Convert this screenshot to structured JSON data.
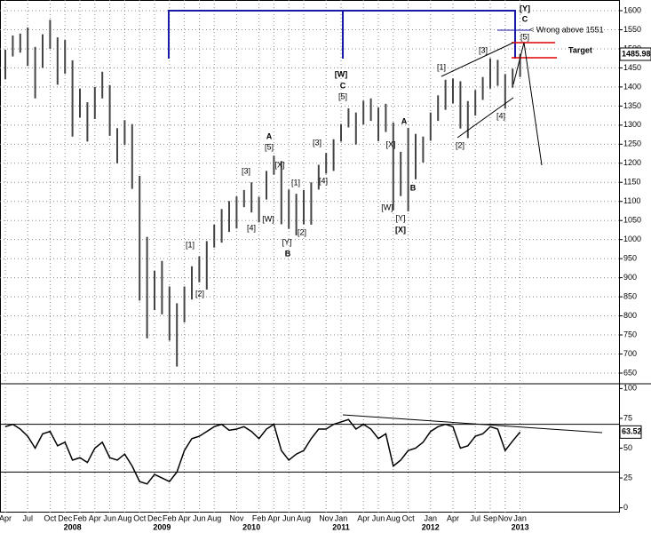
{
  "chart_data": [
    {
      "type": "range-bar",
      "color": "#444444",
      "grid": true,
      "categories": [
        "Apr",
        null,
        null,
        "Jul",
        null,
        null,
        "Oct",
        null,
        "Dec",
        null,
        "Feb",
        null,
        "Apr",
        null,
        "Jun",
        null,
        "Aug",
        null,
        "Oct",
        null,
        "Dec",
        null,
        "Feb",
        null,
        "Apr",
        null,
        "Jun",
        null,
        "Aug",
        null,
        null,
        "Nov",
        null,
        null,
        "Feb",
        null,
        "Apr",
        null,
        "Jun",
        null,
        "Aug",
        null,
        null,
        "Nov",
        null,
        "Jan",
        null,
        null,
        "Apr",
        null,
        "Jun",
        null,
        "Aug",
        null,
        "Oct",
        null,
        null,
        "Jan",
        null,
        null,
        "Apr",
        null,
        null,
        "Jul",
        null,
        "Sep",
        null,
        "Nov",
        null,
        "Jan"
      ],
      "years": [
        null,
        null,
        null,
        null,
        null,
        null,
        null,
        null,
        null,
        "2008",
        null,
        null,
        null,
        null,
        null,
        null,
        null,
        null,
        null,
        null,
        null,
        "2009",
        null,
        null,
        null,
        null,
        null,
        null,
        null,
        null,
        null,
        null,
        null,
        "2010",
        null,
        null,
        null,
        null,
        null,
        null,
        null,
        null,
        null,
        null,
        null,
        "2011",
        null,
        null,
        null,
        null,
        null,
        null,
        null,
        null,
        null,
        null,
        null,
        "2012",
        null,
        null,
        null,
        null,
        null,
        null,
        null,
        null,
        null,
        null,
        null,
        "2013"
      ],
      "high": [
        1498,
        1535,
        1540,
        1556,
        1505,
        1538,
        1576,
        1530,
        1523,
        1470,
        1396,
        1360,
        1400,
        1440,
        1405,
        1292,
        1313,
        1303,
        1167,
        1007,
        918,
        944,
        877,
        833,
        877,
        930,
        956,
        996,
        1039,
        1080,
        1101,
        1113,
        1130,
        1150,
        1112,
        1180,
        1220,
        1206,
        1131,
        1120,
        1130,
        1150,
        1196,
        1227,
        1263,
        1303,
        1344,
        1333,
        1364,
        1370,
        1346,
        1356,
        1307,
        1230,
        1293,
        1277,
        1270,
        1333,
        1378,
        1419,
        1422,
        1415,
        1363,
        1392,
        1426,
        1475,
        1471,
        1434,
        1448,
        1486
      ],
      "low": [
        1420,
        1480,
        1490,
        1455,
        1370,
        1450,
        1500,
        1406,
        1435,
        1270,
        1320,
        1257,
        1316,
        1370,
        1272,
        1200,
        1248,
        1133,
        840,
        741,
        815,
        804,
        735,
        667,
        783,
        843,
        888,
        869,
        979,
        992,
        1020,
        1029,
        1085,
        1071,
        1045,
        1105,
        1170,
        1040,
        1028,
        1011,
        1040,
        1039,
        1131,
        1173,
        1180,
        1257,
        1294,
        1249,
        1302,
        1311,
        1258,
        1282,
        1077,
        1114,
        1074,
        1158,
        1202,
        1259,
        1311,
        1340,
        1357,
        1291,
        1266,
        1325,
        1366,
        1396,
        1403,
        1343,
        1398,
        1426
      ],
      "last_value": 1485.98,
      "ylim": [
        622,
        1628
      ],
      "yticks": [
        650,
        700,
        750,
        800,
        850,
        900,
        950,
        1000,
        1050,
        1100,
        1150,
        1200,
        1250,
        1300,
        1350,
        1400,
        1450,
        1500,
        1550,
        1600
      ],
      "annotations": [
        "[Y]",
        "C",
        "< Wrong above 1551",
        "[5]",
        "Target",
        "[3]",
        "[1]",
        "[W]",
        "C",
        "[5]",
        "A",
        "[X]",
        "[4]",
        "[2]",
        "B",
        "[W]",
        "[Y]",
        "[X]",
        "[3]",
        "[4]",
        "A",
        "[5]",
        "[X]",
        "[3]",
        "[1]",
        "[4]",
        "[W]",
        "[2]",
        "[Y]",
        "B",
        "[1]",
        "[2]"
      ]
    },
    {
      "type": "line",
      "color": "#000000",
      "values": [
        68,
        70,
        66,
        60,
        50,
        62,
        64,
        52,
        55,
        40,
        42,
        38,
        50,
        55,
        42,
        40,
        45,
        35,
        22,
        20,
        28,
        25,
        22,
        30,
        48,
        58,
        60,
        64,
        68,
        70,
        65,
        66,
        68,
        64,
        58,
        66,
        70,
        48,
        40,
        45,
        48,
        58,
        66,
        66,
        70,
        72,
        74,
        66,
        70,
        66,
        58,
        62,
        35,
        40,
        48,
        50,
        55,
        64,
        68,
        70,
        68,
        50,
        52,
        60,
        62,
        68,
        66,
        48,
        56,
        63.52
      ],
      "last_value": 63.52,
      "levels": [
        70,
        30
      ],
      "ylim": [
        -4,
        104
      ],
      "yticks": [
        0,
        25,
        50,
        75,
        100
      ]
    }
  ]
}
